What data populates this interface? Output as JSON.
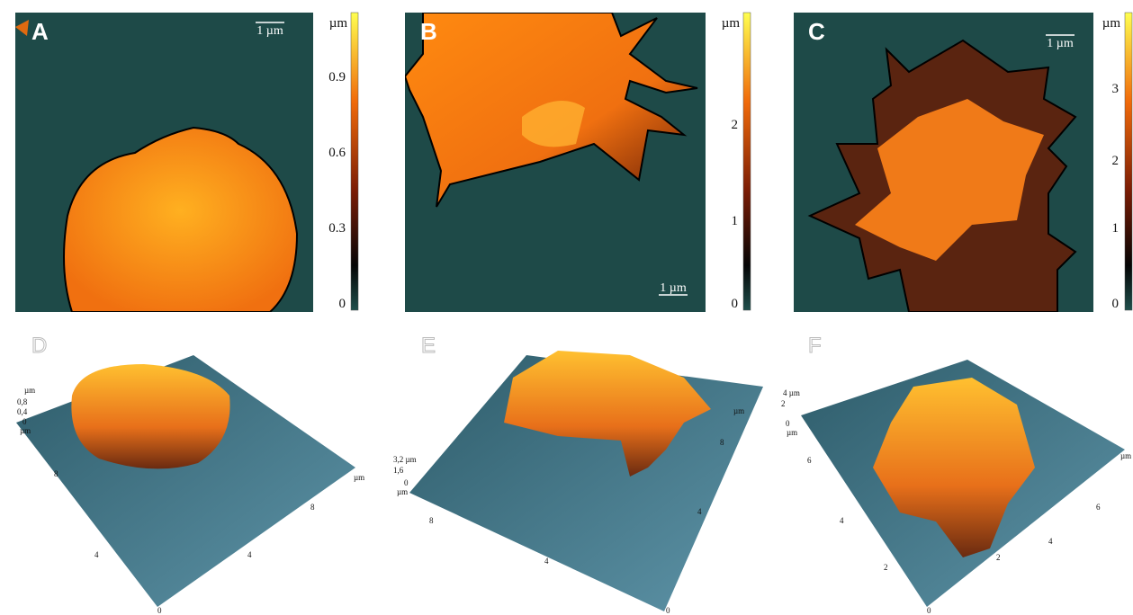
{
  "panels_2d": [
    {
      "label": "A",
      "scale_bar": "1 µm",
      "colorbar_unit": "µm",
      "colorbar_ticks": [
        "0.9",
        "0.6",
        "0.3",
        "0"
      ]
    },
    {
      "label": "B",
      "scale_bar": "1 µm",
      "colorbar_unit": "µm",
      "colorbar_ticks": [
        "2",
        "1",
        "0"
      ]
    },
    {
      "label": "C",
      "scale_bar": "1 µm",
      "colorbar_unit": "µm",
      "colorbar_ticks": [
        "3",
        "2",
        "1",
        "0"
      ]
    }
  ],
  "panels_3d": [
    {
      "label": "D",
      "axis_labels": [
        "µm",
        "0,8",
        "0,4",
        "0",
        "µm",
        "8",
        "4",
        "0",
        "8",
        "4",
        "µm"
      ]
    },
    {
      "label": "E",
      "axis_labels": [
        "3,2 µm",
        "1,6",
        "0",
        "µm",
        "8",
        "4",
        "0",
        "8",
        "4",
        "µm"
      ]
    },
    {
      "label": "F",
      "axis_labels": [
        "4 µm",
        "2",
        "0",
        "µm",
        "6",
        "4",
        "2",
        "0",
        "6",
        "4",
        "2",
        "µm"
      ]
    }
  ]
}
